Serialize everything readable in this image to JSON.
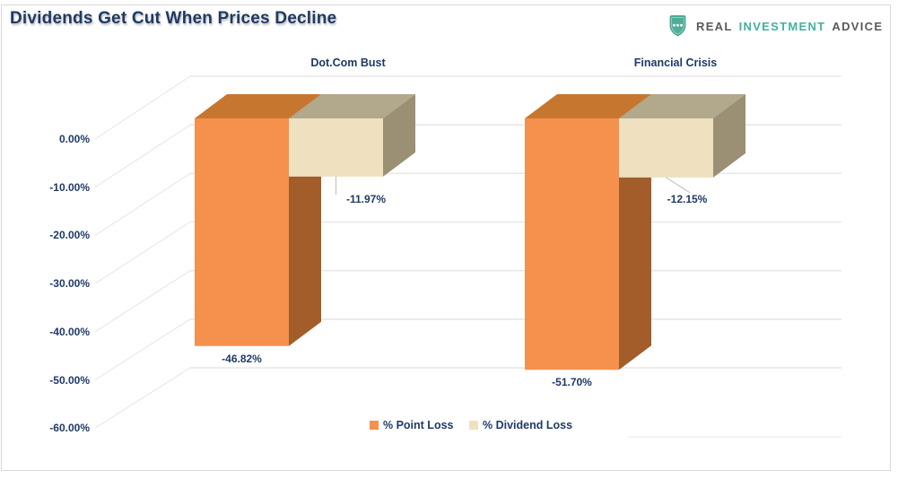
{
  "title": "Dividends Get Cut When Prices Decline",
  "logo": {
    "word1": "REAL",
    "word2": "INVESTMENT",
    "word3": "ADVICE"
  },
  "colors": {
    "navy_text": "#1F3A66",
    "grid": "#E8E8E8",
    "tick": "#EAEAEA",
    "floor_edge": "#F1F1F1",
    "frame_border": "#D9D9D9",
    "callout": "#BDBDBD",
    "logo_teal": "#3FB39E",
    "logo_gray": "#58595B",
    "shield_fill": "#4FAE9A",
    "shield_edge": "#449D8A"
  },
  "chart_data": {
    "type": "bar",
    "style": "3d-clustered-column",
    "title": "Dividends Get Cut When Prices Decline",
    "categories": [
      "Dot.Com Bust",
      "Financial Crisis"
    ],
    "series": [
      {
        "name": "% Point Loss",
        "values": [
          -46.82,
          -51.7
        ],
        "labels": [
          "-46.82%",
          "-51.70%"
        ],
        "color_front": "#F5914C",
        "color_top": "#C7762F",
        "color_side": "#A25D2B"
      },
      {
        "name": "% Dividend Loss",
        "values": [
          -11.97,
          -12.15
        ],
        "labels": [
          "-11.97%",
          "-12.15%"
        ],
        "color_front": "#EFE0C0",
        "color_top": "#B2A88B",
        "color_side": "#9B8F74"
      }
    ],
    "y_axis": {
      "min": -60,
      "max": 0,
      "tick_step": 10,
      "ticks": [
        "0.00%",
        "-10.00%",
        "-20.00%",
        "-30.00%",
        "-40.00%",
        "-50.00%",
        "-60.00%"
      ]
    },
    "legend": {
      "position": "bottom"
    },
    "gridlines": true
  }
}
